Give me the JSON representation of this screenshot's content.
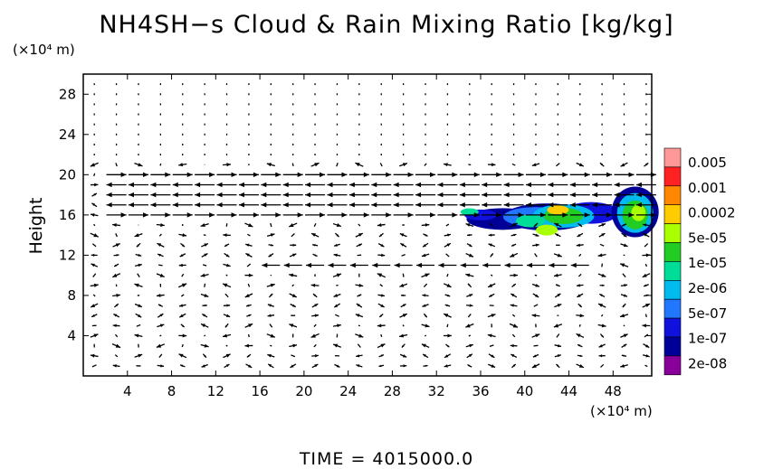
{
  "chart_data": {
    "type": "vector-field with filled contour",
    "title": "NH4SH−s Cloud & Rain Mixing Ratio [kg/kg]",
    "ylabel": "Height",
    "xunit": "(×10⁴ m)",
    "yunit": "(×10⁴ m)",
    "footer": "TIME  =  4015000.0",
    "xlim": [
      0,
      51.5
    ],
    "ylim": [
      0,
      30
    ],
    "xticks": [
      "4",
      "8",
      "12",
      "16",
      "20",
      "24",
      "28",
      "32",
      "36",
      "40",
      "44",
      "48"
    ],
    "yticks": [
      "4",
      "8",
      "12",
      "16",
      "20",
      "24",
      "28"
    ],
    "colorbar": {
      "labels": [
        "0.005",
        "0.001",
        "0.0002",
        "5e-05",
        "1e-05",
        "2e-06",
        "5e-07",
        "1e-07",
        "2e-08"
      ],
      "colors": [
        "#ff9999",
        "#ff2222",
        "#ff8800",
        "#ffcc00",
        "#aaff00",
        "#22cc22",
        "#00dd99",
        "#00bbee",
        "#2277ff",
        "#1111dd",
        "#000099",
        "#880099"
      ]
    },
    "cloud_regions": [
      {
        "x": [
          33.5,
          50
        ],
        "y": [
          13,
          18
        ]
      },
      {
        "x": [
          46.5,
          51.5
        ],
        "y": [
          13.5,
          19
        ]
      }
    ],
    "wind_layers": [
      {
        "y": 20,
        "direction": "eastward",
        "note": "strong"
      },
      {
        "y": 19,
        "direction": "westward",
        "note": "strong"
      },
      {
        "y": 17.7,
        "direction": "westward",
        "note": "strong"
      },
      {
        "y": 16.7,
        "direction": "westward",
        "note": "strong"
      },
      {
        "y": 15.8,
        "direction": "eastward",
        "note": "strong"
      },
      {
        "y": 11,
        "direction": "westward",
        "note": "moderate"
      }
    ]
  }
}
